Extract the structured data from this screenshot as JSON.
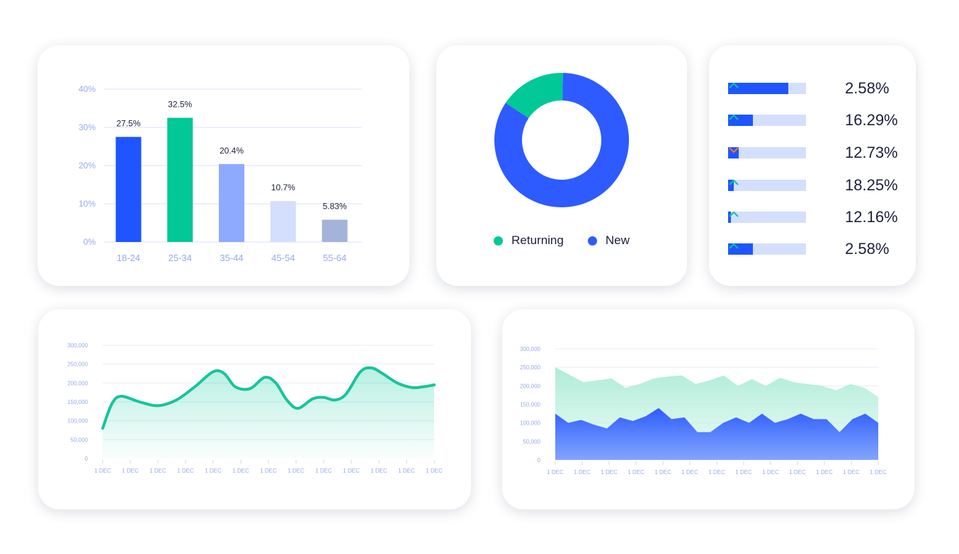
{
  "colors": {
    "blue": "#1f55ff",
    "green": "#00c896",
    "light_blue": "#8eaaff",
    "pale_blue": "#d3dffc",
    "slate": "#a3b3d9",
    "orange": "#f07a2a",
    "grid": "#d7e1fb",
    "axis_text": "#96abe6"
  },
  "bar_chart": {
    "chart_data": {
      "type": "bar",
      "categories": [
        "18-24",
        "25-34",
        "35-44",
        "45-54",
        "55-64"
      ],
      "values": [
        27.5,
        32.5,
        20.4,
        10.7,
        5.83
      ],
      "value_labels": [
        "27.5%",
        "32.5%",
        "20.4%",
        "10.7%",
        "5.83%"
      ],
      "bar_colors": [
        "#1f55ff",
        "#00c896",
        "#8eaaff",
        "#d3dffc",
        "#a3b3d9"
      ],
      "yticks": [
        "0%",
        "10%",
        "20%",
        "30%",
        "40%"
      ],
      "ylim": [
        0,
        40
      ],
      "grid": true
    }
  },
  "donut_chart": {
    "chart_data": {
      "type": "pie",
      "categories": [
        "Returning",
        "New"
      ],
      "values": [
        16,
        84
      ],
      "colors": [
        "#00c896",
        "#2d5bff"
      ]
    },
    "legend": [
      {
        "label": "Returning",
        "color": "#00c896"
      },
      {
        "label": "New",
        "color": "#2d5bff"
      }
    ]
  },
  "progress_list": {
    "items": [
      {
        "fill": 0.77,
        "trend": "up",
        "value": "2.58%"
      },
      {
        "fill": 0.32,
        "trend": "up",
        "value": "16.29%"
      },
      {
        "fill": 0.14,
        "trend": "down",
        "value": "12.73%"
      },
      {
        "fill": 0.07,
        "trend": "up",
        "value": "18.25%"
      },
      {
        "fill": 0.035,
        "trend": "up",
        "value": "12.16%"
      },
      {
        "fill": 0.32,
        "trend": "up",
        "value": "2.58%"
      }
    ]
  },
  "line_chart": {
    "chart_data": {
      "type": "line",
      "yticks": [
        "0",
        "50,000",
        "100,000",
        "150,000",
        "200,000",
        "250,000",
        "300,000"
      ],
      "ylim": [
        0,
        300000
      ],
      "xticks": [
        "1 DEC",
        "1 DEC",
        "1 DEC",
        "1 DEC",
        "1 DEC",
        "1 DEC",
        "1 DEC",
        "1 DEC",
        "1 DEC",
        "1 DEC",
        "1 DEC",
        "1 DEC",
        "1 DEC"
      ],
      "series": [
        {
          "values": [
            [
              0,
              80000
            ],
            [
              0.25,
              145000
            ],
            [
              0.5,
              165000
            ],
            [
              1,
              150000
            ],
            [
              1.5,
              140000
            ],
            [
              2,
              155000
            ],
            [
              2.5,
              190000
            ],
            [
              3,
              230000
            ],
            [
              3.3,
              225000
            ],
            [
              3.6,
              190000
            ],
            [
              4,
              185000
            ],
            [
              4.4,
              215000
            ],
            [
              4.7,
              200000
            ],
            [
              5,
              155000
            ],
            [
              5.3,
              133000
            ],
            [
              5.7,
              158000
            ],
            [
              6,
              162000
            ],
            [
              6.3,
              155000
            ],
            [
              6.6,
              170000
            ],
            [
              7,
              230000
            ],
            [
              7.3,
              240000
            ],
            [
              7.6,
              225000
            ],
            [
              8,
              200000
            ],
            [
              8.4,
              188000
            ],
            [
              8.7,
              190000
            ],
            [
              9,
              195000
            ]
          ]
        }
      ],
      "grid": true
    }
  },
  "area_chart": {
    "chart_data": {
      "type": "area",
      "yticks": [
        "0",
        "50,000",
        "100,000",
        "150,000",
        "200,000",
        "250,000",
        "300,000"
      ],
      "ylim": [
        0,
        300000
      ],
      "xticks": [
        "1 DEC",
        "1 DEC",
        "1 DEC",
        "1 DEC",
        "1 DEC",
        "1 DEC",
        "1 DEC",
        "1 DEC",
        "1 DEC",
        "1 DEC",
        "1 DEC",
        "1 DEC",
        "1 DEC"
      ],
      "series": [
        {
          "values": [
            250000,
            230000,
            210000,
            215000,
            220000,
            195000,
            205000,
            220000,
            225000,
            228000,
            205000,
            215000,
            228000,
            200000,
            218000,
            200000,
            222000,
            210000,
            205000,
            200000,
            188000,
            205000,
            195000,
            170000
          ]
        },
        {
          "values": [
            125000,
            100000,
            108000,
            95000,
            85000,
            115000,
            105000,
            118000,
            140000,
            110000,
            115000,
            75000,
            75000,
            100000,
            115000,
            100000,
            125000,
            100000,
            110000,
            125000,
            110000,
            110000,
            75000,
            110000,
            125000,
            100000
          ]
        }
      ],
      "grid": true
    }
  }
}
